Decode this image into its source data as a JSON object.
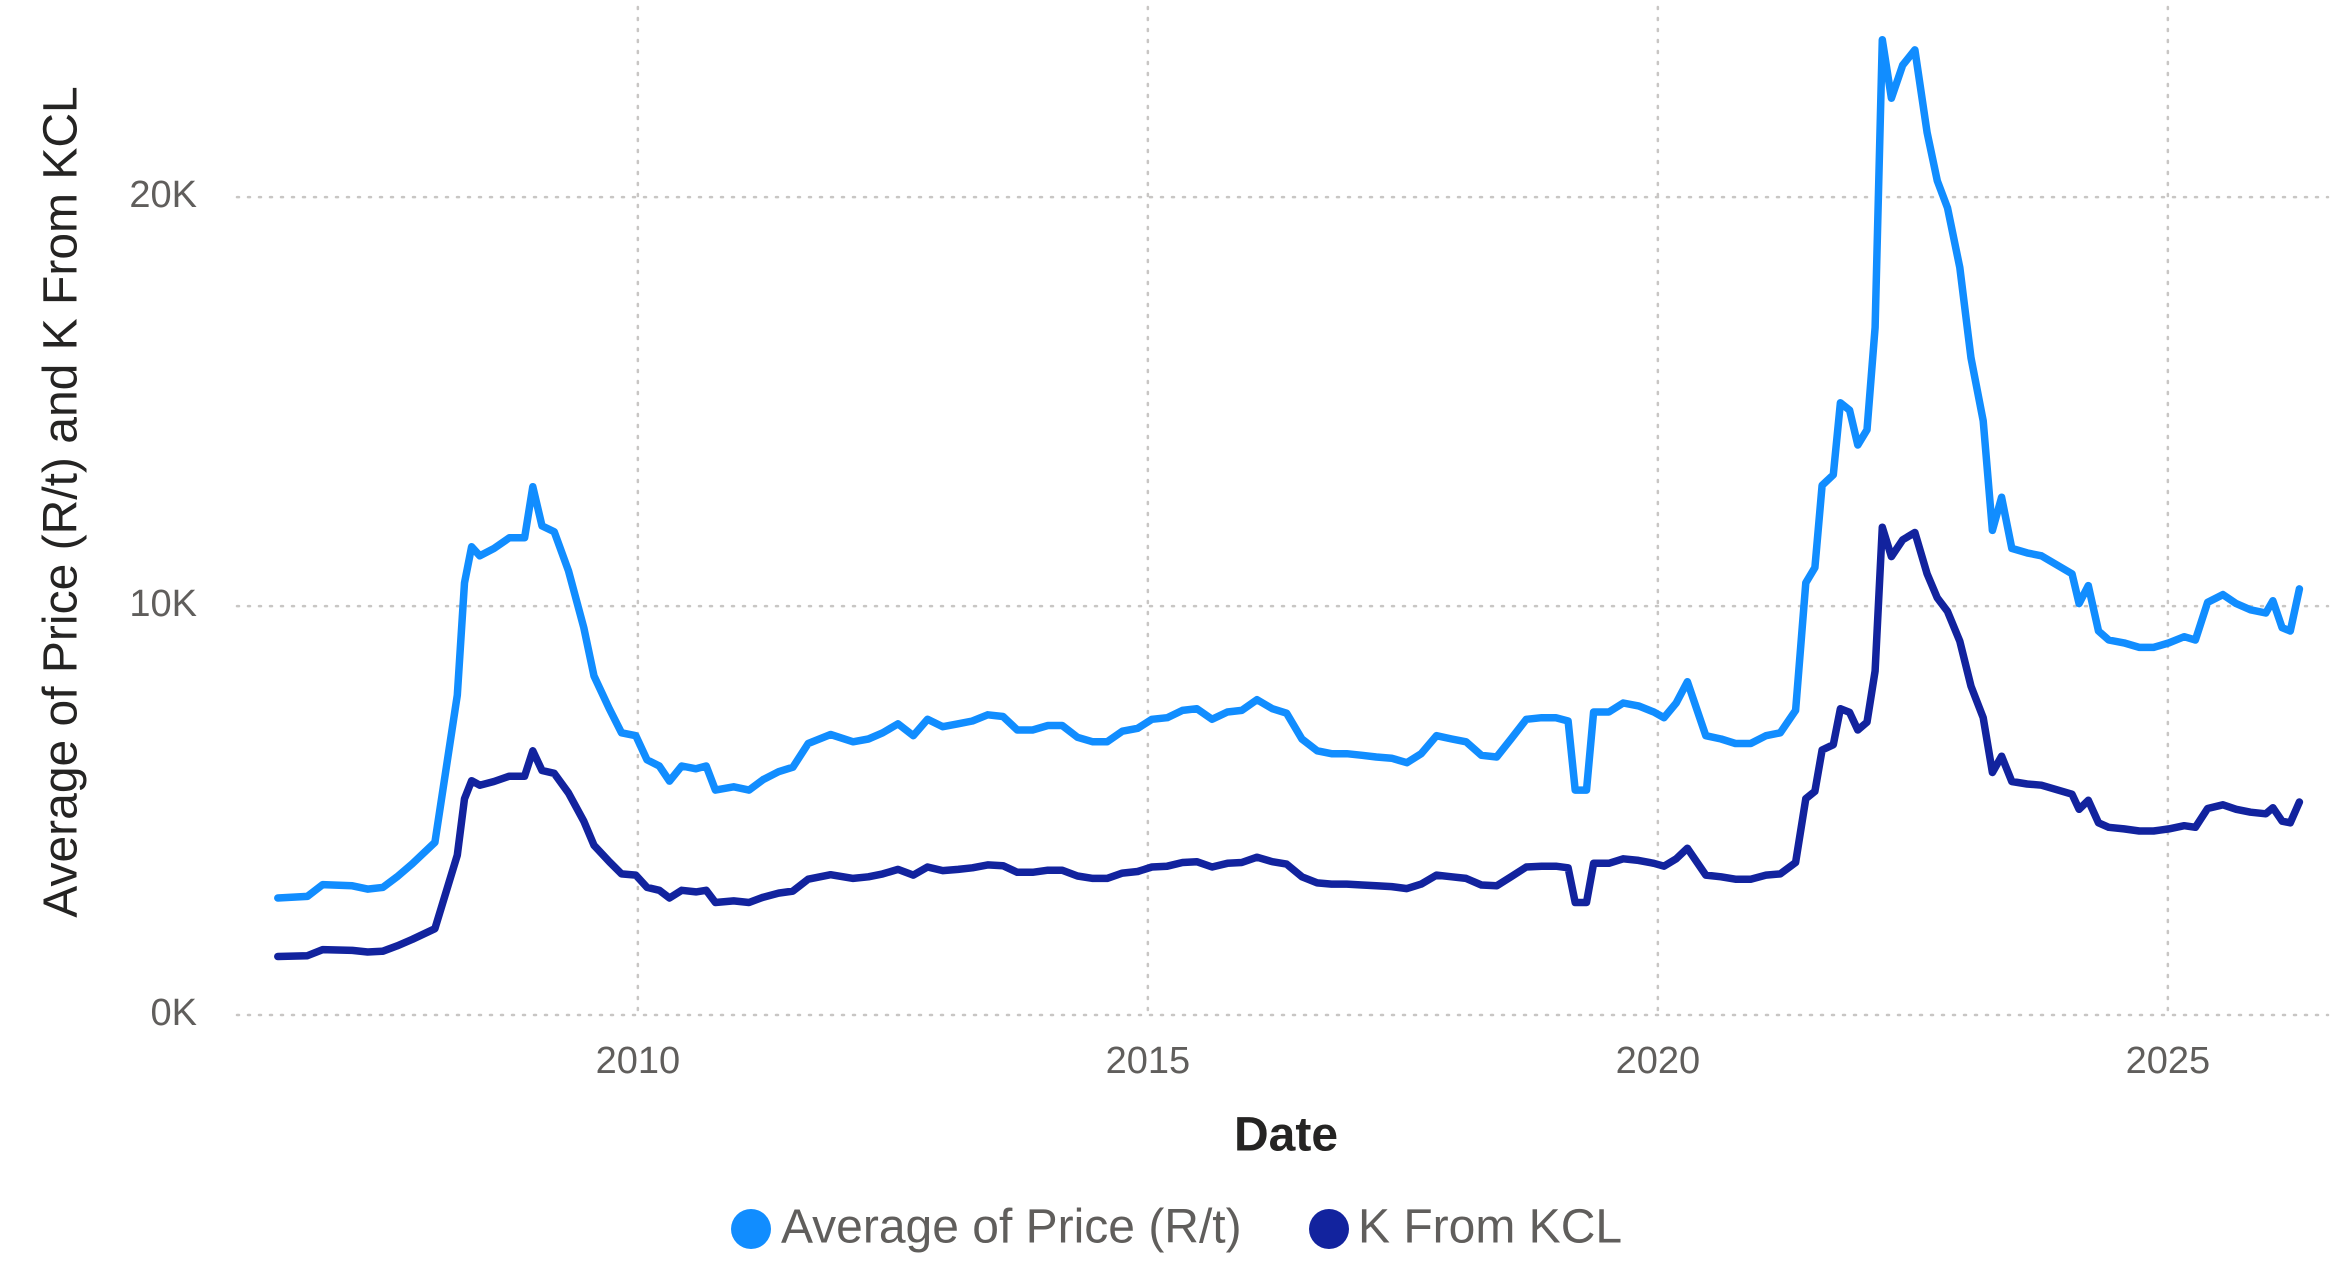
{
  "chart_data": {
    "type": "line",
    "x_label": "Date",
    "y_label": "Average of Price (R/t) and K From KCL",
    "xlim": [
      2006.07,
      2026.57
    ],
    "xticks": [
      2010,
      2015,
      2020,
      2025
    ],
    "ylim": [
      0,
      24650
    ],
    "yticks": [
      {
        "value": 0,
        "label": "0K"
      },
      {
        "value": 10000,
        "label": "10K"
      },
      {
        "value": 20000,
        "label": "20K"
      }
    ],
    "grid": true,
    "legend": "bottom",
    "x": [
      2006.47,
      2006.76,
      2006.91,
      2007.2,
      2007.35,
      2007.5,
      2007.64,
      2007.79,
      2008.01,
      2008.23,
      2008.3,
      2008.37,
      2008.45,
      2008.59,
      2008.74,
      2008.89,
      2008.97,
      2009.06,
      2009.18,
      2009.32,
      2009.47,
      2009.57,
      2009.72,
      2009.84,
      2009.98,
      2010.09,
      2010.21,
      2010.31,
      2010.43,
      2010.57,
      2010.67,
      2010.76,
      2010.94,
      2011.09,
      2011.23,
      2011.38,
      2011.52,
      2011.67,
      2011.89,
      2012.11,
      2012.26,
      2012.4,
      2012.55,
      2012.7,
      2012.84,
      2012.99,
      2013.14,
      2013.28,
      2013.43,
      2013.58,
      2013.72,
      2013.87,
      2014.02,
      2014.16,
      2014.31,
      2014.46,
      2014.6,
      2014.75,
      2014.9,
      2015.04,
      2015.19,
      2015.34,
      2015.48,
      2015.63,
      2015.78,
      2015.92,
      2016.07,
      2016.22,
      2016.36,
      2016.51,
      2016.66,
      2016.8,
      2016.95,
      2017.1,
      2017.24,
      2017.39,
      2017.54,
      2017.68,
      2017.83,
      2017.98,
      2018.12,
      2018.27,
      2018.42,
      2018.56,
      2018.71,
      2018.86,
      2019.0,
      2019.12,
      2019.19,
      2019.3,
      2019.37,
      2019.52,
      2019.66,
      2019.81,
      2019.96,
      2020.06,
      2020.18,
      2020.29,
      2020.47,
      2020.62,
      2020.76,
      2020.91,
      2021.06,
      2021.2,
      2021.35,
      2021.45,
      2021.54,
      2021.61,
      2021.72,
      2021.79,
      2021.88,
      2021.96,
      2022.05,
      2022.13,
      2022.2,
      2022.29,
      2022.4,
      2022.52,
      2022.64,
      2022.74,
      2022.84,
      2022.96,
      2023.07,
      2023.19,
      2023.28,
      2023.37,
      2023.47,
      2023.62,
      2023.76,
      2023.91,
      2024.06,
      2024.13,
      2024.22,
      2024.32,
      2024.42,
      2024.57,
      2024.72,
      2024.86,
      2025.01,
      2025.16,
      2025.27,
      2025.39,
      2025.54,
      2025.67,
      2025.81,
      2025.96,
      2026.03,
      2026.12,
      2026.2,
      2026.29
    ],
    "series": [
      {
        "name": "Average of Price (R/t)",
        "color": "#118DFF",
        "values": [
          2860,
          2900,
          3190,
          3160,
          3080,
          3120,
          3380,
          3700,
          4220,
          7820,
          10570,
          11450,
          11230,
          11410,
          11670,
          11670,
          12920,
          11960,
          11820,
          10860,
          9470,
          8290,
          7490,
          6900,
          6830,
          6240,
          6090,
          5720,
          6090,
          6020,
          6090,
          5500,
          5580,
          5500,
          5760,
          5950,
          6060,
          6640,
          6860,
          6680,
          6750,
          6900,
          7120,
          6830,
          7230,
          7050,
          7120,
          7190,
          7340,
          7300,
          6970,
          6970,
          7080,
          7080,
          6790,
          6680,
          6680,
          6940,
          7010,
          7230,
          7270,
          7450,
          7490,
          7230,
          7410,
          7450,
          7710,
          7490,
          7380,
          6750,
          6460,
          6390,
          6390,
          6350,
          6310,
          6280,
          6170,
          6390,
          6830,
          6750,
          6680,
          6350,
          6310,
          6750,
          7230,
          7270,
          7270,
          7190,
          5500,
          5500,
          7410,
          7410,
          7630,
          7560,
          7410,
          7270,
          7630,
          8150,
          6830,
          6750,
          6640,
          6640,
          6830,
          6900,
          7450,
          10570,
          10940,
          12950,
          13210,
          14970,
          14790,
          13940,
          14310,
          16810,
          23850,
          22420,
          23230,
          23600,
          21580,
          20400,
          19740,
          18280,
          16070,
          14530,
          11850,
          12660,
          11410,
          11300,
          11230,
          11010,
          10790,
          10060,
          10500,
          9390,
          9170,
          9100,
          8990,
          8990,
          9100,
          9250,
          9170,
          10090,
          10280,
          10060,
          9910,
          9830,
          10130,
          9470,
          9390,
          10420
        ]
      },
      {
        "name": "K From KCL",
        "color": "#12239E",
        "values": [
          1430,
          1450,
          1600,
          1580,
          1540,
          1560,
          1690,
          1850,
          2110,
          3910,
          5290,
          5730,
          5620,
          5710,
          5840,
          5840,
          6460,
          5980,
          5910,
          5430,
          4740,
          4150,
          3750,
          3450,
          3420,
          3120,
          3050,
          2860,
          3050,
          3010,
          3050,
          2750,
          2790,
          2750,
          2880,
          2980,
          3030,
          3320,
          3430,
          3340,
          3380,
          3450,
          3560,
          3420,
          3620,
          3530,
          3560,
          3600,
          3670,
          3650,
          3490,
          3490,
          3540,
          3540,
          3400,
          3340,
          3340,
          3470,
          3510,
          3620,
          3640,
          3730,
          3750,
          3620,
          3710,
          3730,
          3860,
          3750,
          3690,
          3380,
          3230,
          3200,
          3200,
          3180,
          3160,
          3140,
          3090,
          3200,
          3420,
          3380,
          3340,
          3180,
          3160,
          3380,
          3620,
          3640,
          3640,
          3600,
          2750,
          2750,
          3710,
          3710,
          3820,
          3780,
          3710,
          3640,
          3820,
          4080,
          3420,
          3380,
          3320,
          3320,
          3420,
          3450,
          3730,
          5290,
          5470,
          6480,
          6610,
          7490,
          7400,
          6970,
          7160,
          8410,
          11930,
          11210,
          11620,
          11800,
          10790,
          10200,
          9870,
          9140,
          8040,
          7270,
          5930,
          6330,
          5710,
          5650,
          5620,
          5510,
          5400,
          5030,
          5250,
          4700,
          4590,
          4550,
          4500,
          4500,
          4550,
          4630,
          4590,
          5050,
          5140,
          5030,
          4960,
          4920,
          5070,
          4740,
          4700,
          5210
        ]
      }
    ]
  }
}
